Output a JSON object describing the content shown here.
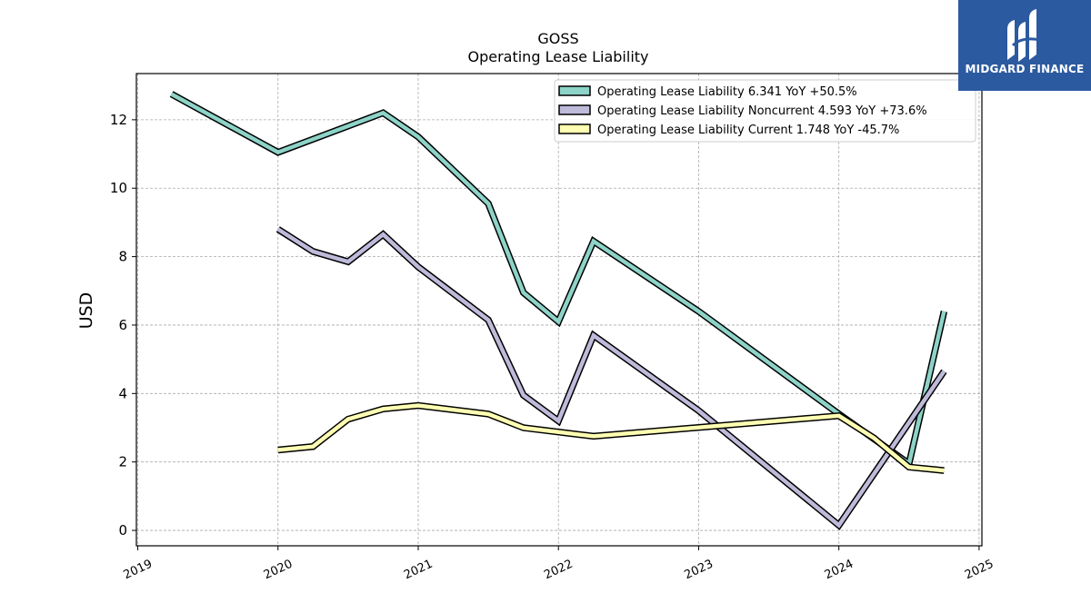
{
  "brand": {
    "name": "MIDGARD FINANCE",
    "bg_color": "#2c5aa0"
  },
  "chart_data": {
    "type": "line",
    "title": "GOSS",
    "subtitle": "Operating Lease Liability",
    "ylabel": "USD",
    "xlabel": "",
    "xlim": [
      2018.99,
      2025.02
    ],
    "ylim": [
      -0.45,
      13.35
    ],
    "yticks": [
      0,
      2,
      4,
      6,
      8,
      10,
      12
    ],
    "xticks": [
      2019,
      2020,
      2021,
      2022,
      2023,
      2024,
      2025
    ],
    "grid": true,
    "legend_position": "top-right",
    "series": [
      {
        "name": "Operating Lease Liability  6.341 YoY +50.5%",
        "color": "#8dd3c7",
        "points": [
          [
            2019.24,
            12.75
          ],
          [
            2020.0,
            11.05
          ],
          [
            2020.75,
            12.2
          ],
          [
            2021.0,
            11.5
          ],
          [
            2021.5,
            9.55
          ],
          [
            2021.75,
            6.95
          ],
          [
            2022.0,
            6.1
          ],
          [
            2022.25,
            8.45
          ],
          [
            2023.0,
            6.4
          ],
          [
            2024.0,
            3.4
          ],
          [
            2024.5,
            1.95
          ],
          [
            2024.75,
            6.4
          ]
        ]
      },
      {
        "name": "Operating Lease Liability Noncurrent  4.593 YoY +73.6%",
        "color": "#bebada",
        "points": [
          [
            2020.0,
            8.8
          ],
          [
            2020.25,
            8.15
          ],
          [
            2020.5,
            7.85
          ],
          [
            2020.75,
            8.65
          ],
          [
            2021.0,
            7.7
          ],
          [
            2021.5,
            6.15
          ],
          [
            2021.75,
            3.95
          ],
          [
            2022.0,
            3.2
          ],
          [
            2022.25,
            5.7
          ],
          [
            2023.0,
            3.5
          ],
          [
            2024.0,
            0.15
          ],
          [
            2024.75,
            4.65
          ]
        ]
      },
      {
        "name": "Operating Lease Liability Current  1.748 YoY -45.7%",
        "color": "#ffffb3",
        "points": [
          [
            2020.0,
            2.35
          ],
          [
            2020.25,
            2.45
          ],
          [
            2020.5,
            3.25
          ],
          [
            2020.75,
            3.55
          ],
          [
            2021.0,
            3.65
          ],
          [
            2021.5,
            3.4
          ],
          [
            2021.75,
            3.0
          ],
          [
            2022.25,
            2.75
          ],
          [
            2024.0,
            3.35
          ],
          [
            2024.25,
            2.7
          ],
          [
            2024.5,
            1.85
          ],
          [
            2024.75,
            1.75
          ]
        ]
      }
    ]
  }
}
